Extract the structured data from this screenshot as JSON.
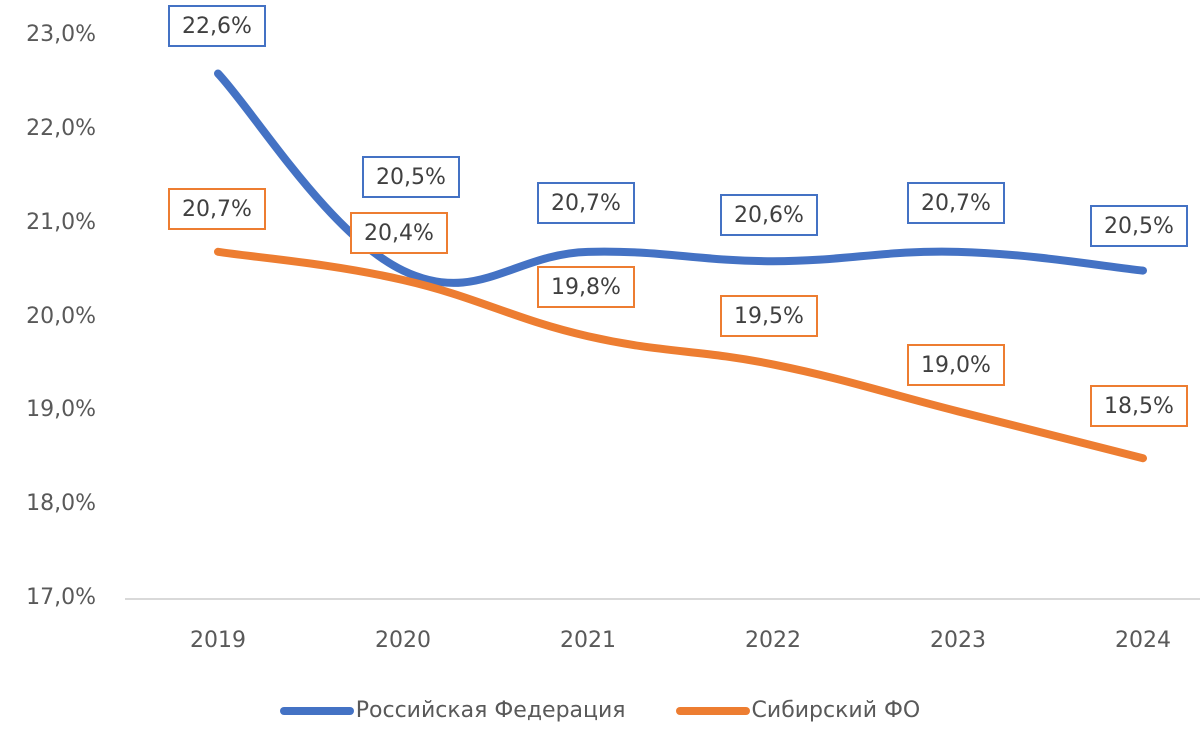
{
  "chart_data": {
    "type": "line",
    "title": "",
    "xlabel": "",
    "ylabel": "",
    "categories": [
      "2019",
      "2020",
      "2021",
      "2022",
      "2023",
      "2024"
    ],
    "series": [
      {
        "name": "Российская Федерация",
        "color": "#4472C4",
        "values": [
          22.6,
          20.5,
          20.7,
          20.6,
          20.7,
          20.5
        ],
        "labels": [
          "22,6%",
          "20,5%",
          "20,7%",
          "20,6%",
          "20,7%",
          "20,5%"
        ]
      },
      {
        "name": "Сибирский ФО",
        "color": "#ED7D31",
        "values": [
          20.7,
          20.4,
          19.8,
          19.5,
          19.0,
          18.5
        ],
        "labels": [
          "20,7%",
          "20,4%",
          "19,8%",
          "19,5%",
          "19,0%",
          "18,5%"
        ]
      }
    ],
    "yticks": [
      "23,0%",
      "22,0%",
      "21,0%",
      "20,0%",
      "19,0%",
      "18,0%",
      "17,0%"
    ],
    "ylim": [
      17.0,
      23.0
    ],
    "grid": false,
    "smooth": true,
    "legend_position": "bottom",
    "data_label_style": "boxed, border in series color"
  },
  "legend": {
    "items": [
      {
        "label": "Российская Федерация",
        "color": "#4472C4"
      },
      {
        "label": "Сибирский ФО",
        "color": "#ED7D31"
      }
    ]
  }
}
